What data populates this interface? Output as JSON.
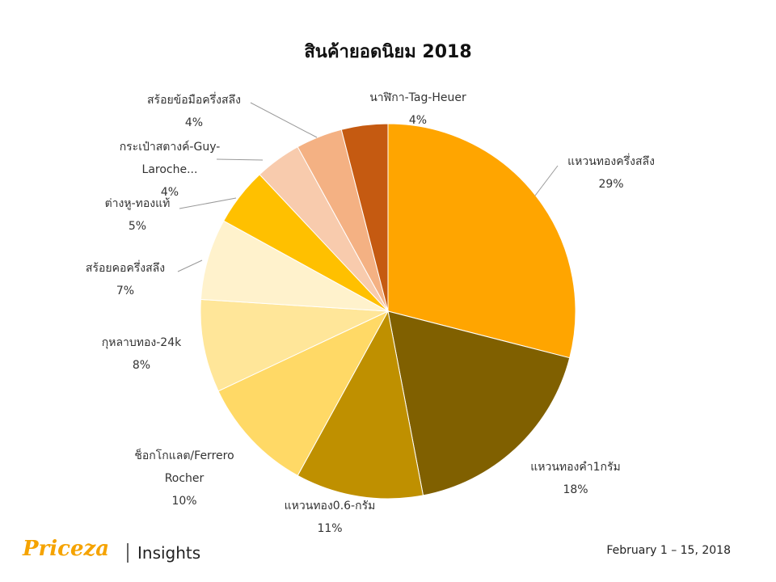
{
  "chart_data": {
    "type": "pie",
    "title": "สินค้ายอดนิยม 2018",
    "categories": [
      "แหวนทองครึ่งสลึง",
      "แหวนทองคำ1กรัม",
      "แหวนทอง0.6-กรัม",
      "ช็อกโกแลต/Ferrero Rocher",
      "กุหลาบทอง-24k",
      "สร้อยคอครึ่งสลึง",
      "ต่างหู-ทองแท้",
      "กระเป๋าสตางค์-Guy-Laroche...",
      "สร้อยข้อมือครึ่งสลึง",
      "นาฬิกา-Tag-Heuer"
    ],
    "values": [
      29,
      18,
      11,
      10,
      8,
      7,
      5,
      4,
      4,
      4
    ],
    "value_labels": [
      "29%",
      "18%",
      "11%",
      "10%",
      "8%",
      "7%",
      "5%",
      "4%",
      "4%",
      "4%"
    ],
    "colors": [
      "#FFA500",
      "#806000",
      "#BF9000",
      "#FFD966",
      "#FFE699",
      "#FFF2CC",
      "#FFC000",
      "#F8CBAD",
      "#F4B183",
      "#C55A11"
    ]
  },
  "footer": {
    "brand": "Priceza",
    "section": "Insights",
    "date": "February 1 – 15, 2018"
  }
}
